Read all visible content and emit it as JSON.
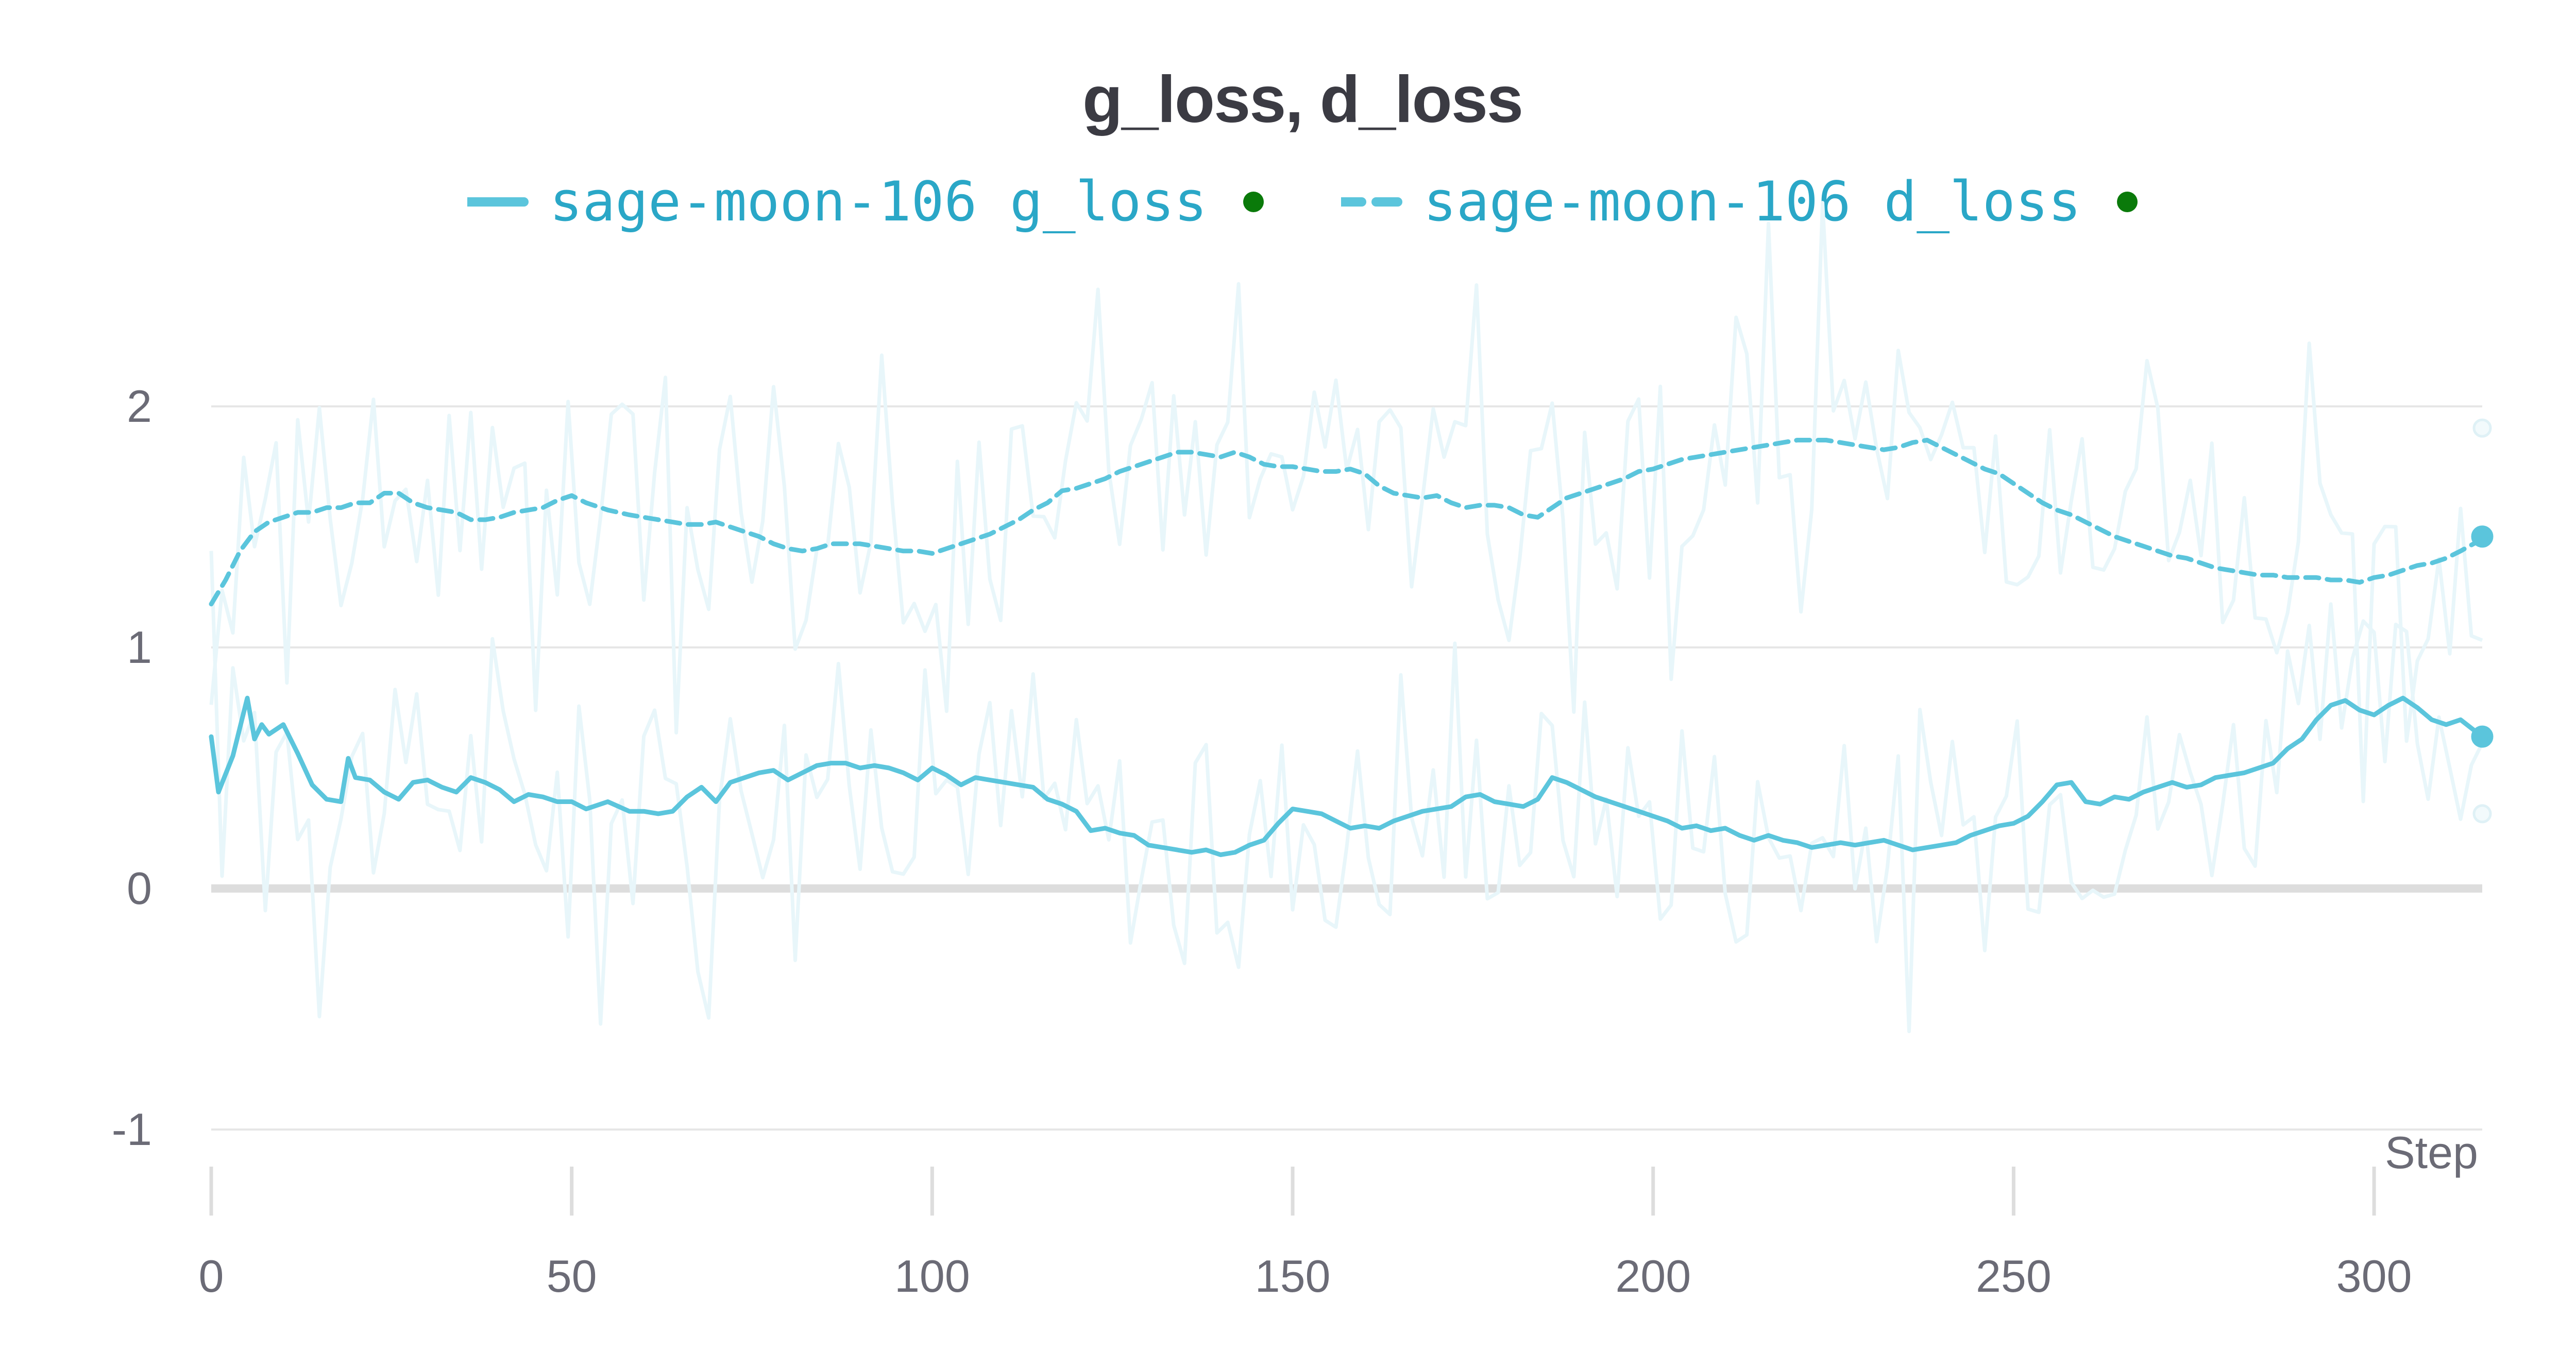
{
  "chart_data": {
    "type": "line",
    "title": "g_loss, d_loss",
    "xlabel": "Step",
    "ylabel": "",
    "xlim": [
      0,
      315
    ],
    "ylim": [
      -1.25,
      2.5
    ],
    "x_ticks": [
      0,
      50,
      100,
      150,
      200,
      250,
      300
    ],
    "y_ticks": [
      -1,
      0,
      1,
      2
    ],
    "x_tick_labels": [
      "0",
      "50",
      "100",
      "150",
      "200",
      "250",
      "300"
    ],
    "y_tick_labels": [
      "-1",
      "0",
      "1",
      "2"
    ],
    "grid": true,
    "legend_position": "top-center",
    "colors": {
      "series": "#5bc5dc",
      "raw": "#e8f6fa",
      "legend_text": "#2aa7c7",
      "status_dot": "#0a7a0a",
      "grid": "#e6e6e6",
      "zero_line": "#dddddd",
      "tick_text": "#6b6b76"
    },
    "series": [
      {
        "name": "sage-moon-106 g_loss",
        "style": "solid",
        "x": [
          0,
          1,
          3,
          5,
          6,
          7,
          8,
          10,
          12,
          14,
          16,
          18,
          19,
          20,
          22,
          24,
          26,
          28,
          30,
          32,
          34,
          36,
          38,
          40,
          42,
          44,
          46,
          48,
          50,
          52,
          55,
          58,
          60,
          62,
          64,
          66,
          68,
          70,
          72,
          74,
          76,
          78,
          80,
          82,
          84,
          86,
          88,
          90,
          92,
          94,
          96,
          98,
          100,
          102,
          104,
          106,
          108,
          110,
          112,
          114,
          116,
          118,
          120,
          122,
          124,
          126,
          128,
          130,
          132,
          134,
          136,
          138,
          140,
          142,
          144,
          146,
          148,
          150,
          152,
          154,
          156,
          158,
          160,
          162,
          164,
          166,
          168,
          170,
          172,
          174,
          176,
          178,
          180,
          182,
          184,
          186,
          188,
          190,
          192,
          194,
          196,
          198,
          200,
          202,
          204,
          206,
          208,
          210,
          212,
          214,
          216,
          218,
          220,
          222,
          224,
          226,
          228,
          230,
          232,
          234,
          236,
          238,
          240,
          242,
          244,
          246,
          248,
          250,
          252,
          254,
          256,
          258,
          260,
          262,
          264,
          266,
          268,
          270,
          272,
          274,
          276,
          278,
          280,
          282,
          284,
          286,
          288,
          290,
          292,
          294,
          296,
          298,
          300,
          302,
          304,
          306,
          308,
          310,
          312,
          315
        ],
        "values": [
          0.63,
          0.4,
          0.55,
          0.79,
          0.62,
          0.68,
          0.64,
          0.68,
          0.56,
          0.43,
          0.37,
          0.36,
          0.54,
          0.46,
          0.45,
          0.4,
          0.37,
          0.44,
          0.45,
          0.42,
          0.4,
          0.46,
          0.44,
          0.41,
          0.36,
          0.39,
          0.38,
          0.36,
          0.36,
          0.33,
          0.36,
          0.32,
          0.32,
          0.31,
          0.32,
          0.38,
          0.42,
          0.36,
          0.44,
          0.46,
          0.48,
          0.49,
          0.45,
          0.48,
          0.51,
          0.52,
          0.52,
          0.5,
          0.51,
          0.5,
          0.48,
          0.45,
          0.5,
          0.47,
          0.43,
          0.46,
          0.45,
          0.44,
          0.43,
          0.42,
          0.37,
          0.35,
          0.32,
          0.24,
          0.25,
          0.23,
          0.22,
          0.18,
          0.17,
          0.16,
          0.15,
          0.16,
          0.14,
          0.15,
          0.18,
          0.2,
          0.27,
          0.33,
          0.32,
          0.31,
          0.28,
          0.25,
          0.26,
          0.25,
          0.28,
          0.3,
          0.32,
          0.33,
          0.34,
          0.38,
          0.39,
          0.36,
          0.35,
          0.34,
          0.37,
          0.46,
          0.44,
          0.41,
          0.38,
          0.36,
          0.34,
          0.32,
          0.3,
          0.28,
          0.25,
          0.26,
          0.24,
          0.25,
          0.22,
          0.2,
          0.22,
          0.2,
          0.19,
          0.17,
          0.18,
          0.19,
          0.18,
          0.19,
          0.2,
          0.18,
          0.16,
          0.17,
          0.18,
          0.19,
          0.22,
          0.24,
          0.26,
          0.27,
          0.3,
          0.36,
          0.43,
          0.44,
          0.36,
          0.35,
          0.38,
          0.37,
          0.4,
          0.42,
          0.44,
          0.42,
          0.43,
          0.46,
          0.47,
          0.48,
          0.5,
          0.52,
          0.58,
          0.62,
          0.7,
          0.76,
          0.78,
          0.74,
          0.72,
          0.76,
          0.79,
          0.75,
          0.7,
          0.68,
          0.7,
          0.63
        ]
      },
      {
        "name": "sage-moon-106 d_loss",
        "style": "dashed",
        "x": [
          0,
          2,
          4,
          6,
          8,
          10,
          12,
          14,
          16,
          18,
          20,
          22,
          24,
          26,
          28,
          30,
          32,
          34,
          36,
          38,
          40,
          42,
          44,
          46,
          48,
          50,
          52,
          55,
          58,
          60,
          62,
          64,
          66,
          68,
          70,
          72,
          74,
          76,
          78,
          80,
          82,
          84,
          86,
          88,
          90,
          92,
          94,
          96,
          98,
          100,
          102,
          104,
          106,
          108,
          110,
          112,
          114,
          116,
          118,
          120,
          122,
          124,
          126,
          128,
          130,
          132,
          134,
          136,
          138,
          140,
          142,
          144,
          146,
          148,
          150,
          152,
          154,
          156,
          158,
          160,
          162,
          164,
          166,
          168,
          170,
          172,
          174,
          176,
          178,
          180,
          182,
          184,
          186,
          188,
          190,
          192,
          194,
          196,
          198,
          200,
          202,
          204,
          206,
          208,
          210,
          212,
          214,
          216,
          218,
          220,
          222,
          224,
          226,
          228,
          230,
          232,
          234,
          236,
          238,
          240,
          242,
          244,
          246,
          248,
          250,
          252,
          254,
          256,
          258,
          260,
          262,
          264,
          266,
          268,
          270,
          272,
          274,
          276,
          278,
          280,
          282,
          284,
          286,
          288,
          290,
          292,
          294,
          296,
          298,
          300,
          302,
          304,
          306,
          308,
          310,
          312,
          315
        ],
        "values": [
          1.18,
          1.28,
          1.4,
          1.48,
          1.52,
          1.54,
          1.56,
          1.56,
          1.58,
          1.58,
          1.6,
          1.6,
          1.64,
          1.64,
          1.6,
          1.58,
          1.57,
          1.56,
          1.53,
          1.53,
          1.54,
          1.56,
          1.57,
          1.58,
          1.61,
          1.63,
          1.6,
          1.57,
          1.55,
          1.54,
          1.53,
          1.52,
          1.51,
          1.51,
          1.52,
          1.5,
          1.48,
          1.46,
          1.43,
          1.41,
          1.4,
          1.41,
          1.43,
          1.43,
          1.43,
          1.42,
          1.41,
          1.4,
          1.4,
          1.39,
          1.41,
          1.43,
          1.45,
          1.47,
          1.5,
          1.53,
          1.57,
          1.6,
          1.65,
          1.66,
          1.68,
          1.7,
          1.73,
          1.75,
          1.77,
          1.79,
          1.81,
          1.81,
          1.8,
          1.79,
          1.81,
          1.79,
          1.76,
          1.75,
          1.75,
          1.74,
          1.73,
          1.73,
          1.74,
          1.72,
          1.67,
          1.64,
          1.63,
          1.62,
          1.63,
          1.6,
          1.58,
          1.59,
          1.59,
          1.58,
          1.55,
          1.54,
          1.58,
          1.62,
          1.64,
          1.66,
          1.68,
          1.7,
          1.73,
          1.74,
          1.76,
          1.78,
          1.79,
          1.8,
          1.81,
          1.82,
          1.83,
          1.84,
          1.85,
          1.86,
          1.86,
          1.86,
          1.85,
          1.84,
          1.83,
          1.82,
          1.83,
          1.85,
          1.86,
          1.83,
          1.8,
          1.77,
          1.74,
          1.72,
          1.68,
          1.64,
          1.6,
          1.57,
          1.55,
          1.52,
          1.49,
          1.46,
          1.44,
          1.42,
          1.4,
          1.38,
          1.37,
          1.35,
          1.33,
          1.32,
          1.31,
          1.3,
          1.3,
          1.29,
          1.29,
          1.29,
          1.28,
          1.28,
          1.27,
          1.29,
          1.3,
          1.32,
          1.34,
          1.35,
          1.37,
          1.4,
          1.45
        ]
      }
    ],
    "endpoint_markers": [
      {
        "x": 315,
        "y": 1.91,
        "style": "faint"
      },
      {
        "x": 315,
        "y": 1.46,
        "style": "solid"
      },
      {
        "x": 315,
        "y": 0.63,
        "style": "solid"
      },
      {
        "x": 315,
        "y": 0.31,
        "style": "faint"
      }
    ]
  }
}
